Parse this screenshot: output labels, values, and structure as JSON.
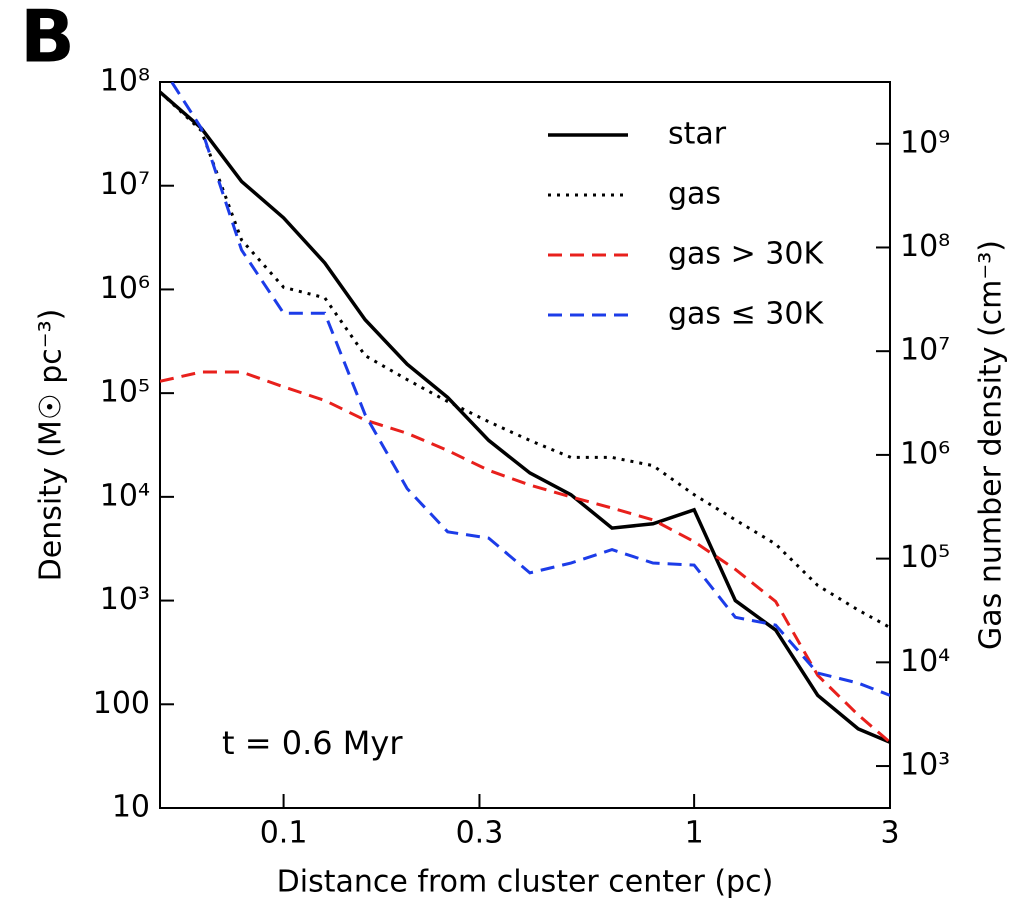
{
  "chart_data": {
    "type": "line",
    "panel_label": "B",
    "annotation": "t = 0.6 Myr",
    "xlabel": "Distance from cluster center (pc)",
    "ylabel": "Density (M☉ pc⁻³)",
    "y2label": "Gas number density (cm⁻³)",
    "xscale": "log",
    "yscale": "log",
    "y2scale": "log",
    "xlim": [
      0.05,
      3
    ],
    "ylim": [
      10,
      100000000
    ],
    "y2lim": [
      394,
      3940000000
    ],
    "xticks": [
      0.1,
      0.3,
      1,
      3
    ],
    "yticks": [
      10,
      100,
      {
        "value": 1000,
        "label": "10³"
      },
      {
        "value": 10000,
        "label": "10⁴"
      },
      {
        "value": 100000,
        "label": "10⁵"
      },
      {
        "value": 1000000,
        "label": "10⁶"
      },
      {
        "value": 10000000,
        "label": "10⁷"
      },
      {
        "value": 100000000,
        "label": "10⁸"
      }
    ],
    "y2ticks": [
      {
        "value": 1000,
        "label": "10³"
      },
      {
        "value": 10000,
        "label": "10⁴"
      },
      {
        "value": 100000,
        "label": "10⁵"
      },
      {
        "value": 1000000,
        "label": "10⁶"
      },
      {
        "value": 10000000,
        "label": "10⁷"
      },
      {
        "value": 100000000,
        "label": "10⁸"
      },
      {
        "value": 1000000000,
        "label": "10⁹"
      }
    ],
    "grid": false,
    "legend": "upper right",
    "x": [
      0.05,
      0.063,
      0.079,
      0.1,
      0.126,
      0.158,
      0.2,
      0.251,
      0.316,
      0.398,
      0.501,
      0.631,
      0.794,
      1,
      1.26,
      1.58,
      2.0,
      2.51,
      3
    ],
    "series": [
      {
        "name": "star",
        "color": "#000000",
        "style": "solid",
        "values": [
          80000000,
          36000000,
          11000000,
          4900000,
          1800000,
          510000,
          190000,
          91000,
          35000,
          17000,
          10500,
          5000,
          5500,
          7500,
          1000,
          520,
          122,
          58,
          43
        ]
      },
      {
        "name": "gas",
        "color": "#000000",
        "style": "dotted",
        "values": [
          80000000,
          34000000,
          3000000,
          1050000,
          830000,
          230000,
          135000,
          83000,
          53000,
          35000,
          24000,
          24000,
          20000,
          10500,
          6000,
          3500,
          1400,
          810,
          550
        ]
      },
      {
        "name": "gas > 30K",
        "color": "#e8201c",
        "style": "dashed",
        "values": [
          130000,
          160000,
          160000,
          115000,
          85000,
          55000,
          41000,
          28000,
          18000,
          13000,
          10000,
          7800,
          6000,
          3700,
          2000,
          980,
          190,
          79,
          43
        ]
      },
      {
        "name": "gas ≤ 30K",
        "color": "#1c3ce8",
        "style": "dashed",
        "values": [
          150000000,
          36000000,
          2400000,
          590000,
          590000,
          62000,
          12000,
          4600,
          4000,
          1850,
          2300,
          3100,
          2300,
          2200,
          690,
          580,
          200,
          160,
          122
        ]
      }
    ]
  }
}
